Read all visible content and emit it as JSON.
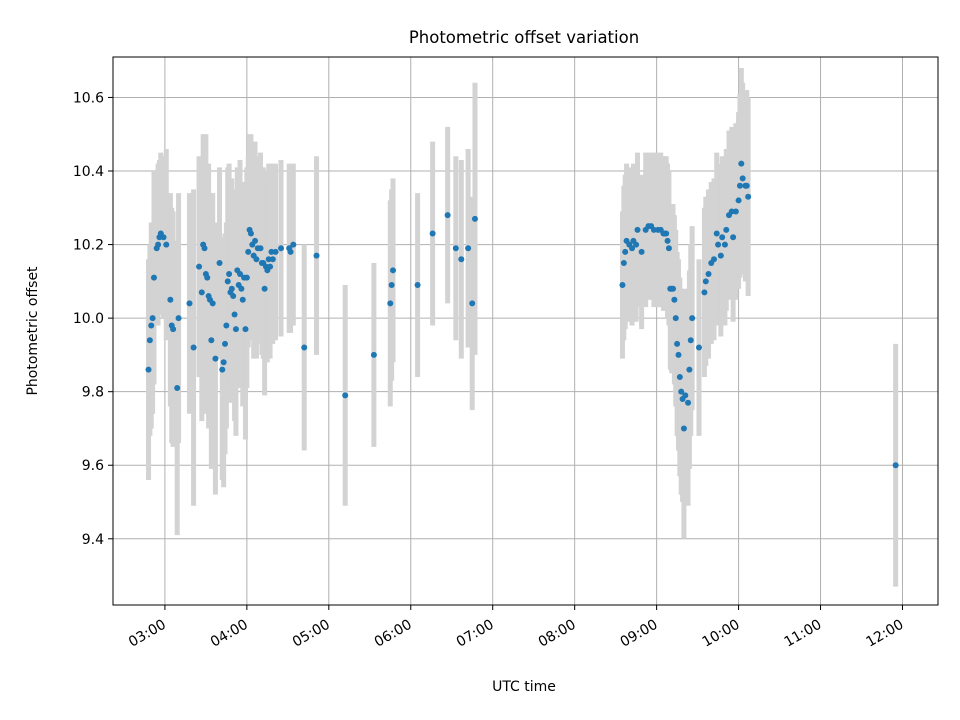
{
  "chart_data": {
    "type": "scatter",
    "title": "Photometric offset variation",
    "xlabel": "UTC time",
    "ylabel": "Photometric offset",
    "x_ticks": [
      "03:00",
      "04:00",
      "05:00",
      "06:00",
      "07:00",
      "08:00",
      "09:00",
      "10:00",
      "11:00",
      "12:00"
    ],
    "y_ticks": [
      "9.4",
      "9.6",
      "9.8",
      "10.0",
      "10.2",
      "10.4",
      "10.6"
    ],
    "xlim": [
      "02:22",
      "12:26"
    ],
    "ylim": [
      9.22,
      10.71
    ],
    "grid": true,
    "colors": {
      "points": "#1f77b4",
      "errorbars": "#d3d3d3",
      "grid": "#b0b0b0",
      "axes": "#000000"
    },
    "series": [
      {
        "points": [
          {
            "t": "02:48",
            "y": 9.86,
            "err": 0.3
          },
          {
            "t": "02:49",
            "y": 9.94,
            "err": 0.26
          },
          {
            "t": "02:50",
            "y": 9.98,
            "err": 0.28
          },
          {
            "t": "02:51",
            "y": 10.0,
            "err": 0.26
          },
          {
            "t": "02:52",
            "y": 10.11,
            "err": 0.29
          },
          {
            "t": "02:54",
            "y": 10.19,
            "err": 0.21
          },
          {
            "t": "02:55",
            "y": 10.2,
            "err": 0.22
          },
          {
            "t": "02:56",
            "y": 10.22,
            "err": 0.21
          },
          {
            "t": "02:57",
            "y": 10.23,
            "err": 0.22
          },
          {
            "t": "02:59",
            "y": 10.22,
            "err": 0.22
          },
          {
            "t": "03:01",
            "y": 10.2,
            "err": 0.26
          },
          {
            "t": "03:04",
            "y": 10.05,
            "err": 0.29
          },
          {
            "t": "03:05",
            "y": 9.98,
            "err": 0.32
          },
          {
            "t": "03:06",
            "y": 9.97,
            "err": 0.32
          },
          {
            "t": "03:09",
            "y": 9.81,
            "err": 0.4
          },
          {
            "t": "03:10",
            "y": 10.0,
            "err": 0.34
          },
          {
            "t": "03:18",
            "y": 10.04,
            "err": 0.3
          },
          {
            "t": "03:21",
            "y": 9.92,
            "err": 0.43
          },
          {
            "t": "03:25",
            "y": 10.14,
            "err": 0.3
          },
          {
            "t": "03:27",
            "y": 10.07,
            "err": 0.35
          },
          {
            "t": "03:28",
            "y": 10.2,
            "err": 0.3
          },
          {
            "t": "03:29",
            "y": 10.19,
            "err": 0.31
          },
          {
            "t": "03:30",
            "y": 10.12,
            "err": 0.38
          },
          {
            "t": "03:31",
            "y": 10.11,
            "err": 0.3
          },
          {
            "t": "03:32",
            "y": 10.06,
            "err": 0.36
          },
          {
            "t": "03:33",
            "y": 10.05,
            "err": 0.29
          },
          {
            "t": "03:34",
            "y": 9.94,
            "err": 0.35
          },
          {
            "t": "03:35",
            "y": 10.04,
            "err": 0.3
          },
          {
            "t": "03:37",
            "y": 9.89,
            "err": 0.37
          },
          {
            "t": "03:40",
            "y": 10.15,
            "err": 0.26
          },
          {
            "t": "03:42",
            "y": 9.86,
            "err": 0.3
          },
          {
            "t": "03:43",
            "y": 9.88,
            "err": 0.34
          },
          {
            "t": "03:44",
            "y": 9.93,
            "err": 0.3
          },
          {
            "t": "03:45",
            "y": 9.98,
            "err": 0.28
          },
          {
            "t": "03:46",
            "y": 10.1,
            "err": 0.31
          },
          {
            "t": "03:47",
            "y": 10.12,
            "err": 0.3
          },
          {
            "t": "03:48",
            "y": 10.07,
            "err": 0.3
          },
          {
            "t": "03:49",
            "y": 10.08,
            "err": 0.3
          },
          {
            "t": "03:50",
            "y": 10.06,
            "err": 0.29
          },
          {
            "t": "03:51",
            "y": 10.01,
            "err": 0.29
          },
          {
            "t": "03:52",
            "y": 9.97,
            "err": 0.29
          },
          {
            "t": "03:53",
            "y": 10.13,
            "err": 0.28
          },
          {
            "t": "03:54",
            "y": 10.09,
            "err": 0.27
          },
          {
            "t": "03:55",
            "y": 10.12,
            "err": 0.31
          },
          {
            "t": "03:56",
            "y": 10.08,
            "err": 0.27
          },
          {
            "t": "03:57",
            "y": 10.05,
            "err": 0.29
          },
          {
            "t": "03:58",
            "y": 10.11,
            "err": 0.26
          },
          {
            "t": "03:59",
            "y": 9.97,
            "err": 0.3
          },
          {
            "t": "04:00",
            "y": 10.11,
            "err": 0.3
          },
          {
            "t": "04:01",
            "y": 10.18,
            "err": 0.26
          },
          {
            "t": "04:02",
            "y": 10.24,
            "err": 0.26
          },
          {
            "t": "04:03",
            "y": 10.23,
            "err": 0.27
          },
          {
            "t": "04:04",
            "y": 10.2,
            "err": 0.26
          },
          {
            "t": "04:05",
            "y": 10.17,
            "err": 0.28
          },
          {
            "t": "04:06",
            "y": 10.21,
            "err": 0.27
          },
          {
            "t": "04:07",
            "y": 10.16,
            "err": 0.27
          },
          {
            "t": "04:08",
            "y": 10.19,
            "err": 0.25
          },
          {
            "t": "04:10",
            "y": 10.19,
            "err": 0.26
          },
          {
            "t": "04:11",
            "y": 10.15,
            "err": 0.25
          },
          {
            "t": "04:12",
            "y": 10.15,
            "err": 0.26
          },
          {
            "t": "04:13",
            "y": 10.08,
            "err": 0.29
          },
          {
            "t": "04:14",
            "y": 10.14,
            "err": 0.26
          },
          {
            "t": "04:15",
            "y": 10.13,
            "err": 0.25
          },
          {
            "t": "04:16",
            "y": 10.16,
            "err": 0.26
          },
          {
            "t": "04:17",
            "y": 10.14,
            "err": 0.25
          },
          {
            "t": "04:18",
            "y": 10.18,
            "err": 0.24
          },
          {
            "t": "04:19",
            "y": 10.16,
            "err": 0.23
          },
          {
            "t": "04:21",
            "y": 10.18,
            "err": 0.24
          },
          {
            "t": "04:25",
            "y": 10.19,
            "err": 0.24
          },
          {
            "t": "04:31",
            "y": 10.19,
            "err": 0.23
          },
          {
            "t": "04:32",
            "y": 10.18,
            "err": 0.22
          },
          {
            "t": "04:34",
            "y": 10.2,
            "err": 0.22
          },
          {
            "t": "04:42",
            "y": 9.92,
            "err": 0.28
          },
          {
            "t": "04:51",
            "y": 10.17,
            "err": 0.27
          },
          {
            "t": "05:12",
            "y": 9.79,
            "err": 0.3
          },
          {
            "t": "05:33",
            "y": 9.9,
            "err": 0.25
          },
          {
            "t": "05:45",
            "y": 10.04,
            "err": 0.28
          },
          {
            "t": "05:46",
            "y": 10.09,
            "err": 0.26
          },
          {
            "t": "05:47",
            "y": 10.13,
            "err": 0.25
          },
          {
            "t": "06:05",
            "y": 10.09,
            "err": 0.25
          },
          {
            "t": "06:16",
            "y": 10.23,
            "err": 0.25
          },
          {
            "t": "06:27",
            "y": 10.28,
            "err": 0.24
          },
          {
            "t": "06:33",
            "y": 10.19,
            "err": 0.25
          },
          {
            "t": "06:37",
            "y": 10.16,
            "err": 0.27
          },
          {
            "t": "06:42",
            "y": 10.19,
            "err": 0.27
          },
          {
            "t": "06:45",
            "y": 10.04,
            "err": 0.29
          },
          {
            "t": "06:47",
            "y": 10.27,
            "err": 0.37
          },
          {
            "t": "08:35",
            "y": 10.09,
            "err": 0.2
          },
          {
            "t": "08:36",
            "y": 10.15,
            "err": 0.21
          },
          {
            "t": "08:37",
            "y": 10.18,
            "err": 0.21
          },
          {
            "t": "08:38",
            "y": 10.21,
            "err": 0.21
          },
          {
            "t": "08:40",
            "y": 10.2,
            "err": 0.21
          },
          {
            "t": "08:42",
            "y": 10.19,
            "err": 0.21
          },
          {
            "t": "08:43",
            "y": 10.21,
            "err": 0.21
          },
          {
            "t": "08:45",
            "y": 10.2,
            "err": 0.21
          },
          {
            "t": "08:46",
            "y": 10.24,
            "err": 0.21
          },
          {
            "t": "08:49",
            "y": 10.18,
            "err": 0.21
          },
          {
            "t": "08:52",
            "y": 10.24,
            "err": 0.21
          },
          {
            "t": "08:54",
            "y": 10.25,
            "err": 0.2
          },
          {
            "t": "08:56",
            "y": 10.25,
            "err": 0.2
          },
          {
            "t": "08:58",
            "y": 10.24,
            "err": 0.21
          },
          {
            "t": "09:01",
            "y": 10.24,
            "err": 0.21
          },
          {
            "t": "09:03",
            "y": 10.24,
            "err": 0.21
          },
          {
            "t": "09:05",
            "y": 10.23,
            "err": 0.21
          },
          {
            "t": "09:06",
            "y": 10.23,
            "err": 0.21
          },
          {
            "t": "09:07",
            "y": 10.23,
            "err": 0.21
          },
          {
            "t": "09:08",
            "y": 10.21,
            "err": 0.21
          },
          {
            "t": "09:09",
            "y": 10.19,
            "err": 0.21
          },
          {
            "t": "09:10",
            "y": 10.08,
            "err": 0.22
          },
          {
            "t": "09:11",
            "y": 10.08,
            "err": 0.23
          },
          {
            "t": "09:12",
            "y": 10.08,
            "err": 0.23
          },
          {
            "t": "09:13",
            "y": 10.05,
            "err": 0.23
          },
          {
            "t": "09:14",
            "y": 10.0,
            "err": 0.24
          },
          {
            "t": "09:15",
            "y": 9.93,
            "err": 0.25
          },
          {
            "t": "09:16",
            "y": 9.9,
            "err": 0.26
          },
          {
            "t": "09:17",
            "y": 9.84,
            "err": 0.27
          },
          {
            "t": "09:18",
            "y": 9.8,
            "err": 0.28
          },
          {
            "t": "09:19",
            "y": 9.78,
            "err": 0.28
          },
          {
            "t": "09:20",
            "y": 9.7,
            "err": 0.3
          },
          {
            "t": "09:21",
            "y": 9.79,
            "err": 0.29
          },
          {
            "t": "09:23",
            "y": 9.77,
            "err": 0.28
          },
          {
            "t": "09:24",
            "y": 9.86,
            "err": 0.27
          },
          {
            "t": "09:25",
            "y": 9.94,
            "err": 0.26
          },
          {
            "t": "09:26",
            "y": 10.0,
            "err": 0.25
          },
          {
            "t": "09:31",
            "y": 9.92,
            "err": 0.24
          },
          {
            "t": "09:35",
            "y": 10.07,
            "err": 0.23
          },
          {
            "t": "09:36",
            "y": 10.1,
            "err": 0.23
          },
          {
            "t": "09:38",
            "y": 10.12,
            "err": 0.23
          },
          {
            "t": "09:40",
            "y": 10.15,
            "err": 0.22
          },
          {
            "t": "09:42",
            "y": 10.16,
            "err": 0.22
          },
          {
            "t": "09:44",
            "y": 10.23,
            "err": 0.22
          },
          {
            "t": "09:45",
            "y": 10.2,
            "err": 0.22
          },
          {
            "t": "09:47",
            "y": 10.17,
            "err": 0.22
          },
          {
            "t": "09:48",
            "y": 10.22,
            "err": 0.22
          },
          {
            "t": "09:50",
            "y": 10.2,
            "err": 0.22
          },
          {
            "t": "09:51",
            "y": 10.24,
            "err": 0.22
          },
          {
            "t": "09:53",
            "y": 10.28,
            "err": 0.23
          },
          {
            "t": "09:55",
            "y": 10.29,
            "err": 0.23
          },
          {
            "t": "09:56",
            "y": 10.22,
            "err": 0.23
          },
          {
            "t": "09:58",
            "y": 10.29,
            "err": 0.24
          },
          {
            "t": "10:00",
            "y": 10.32,
            "err": 0.24
          },
          {
            "t": "10:01",
            "y": 10.36,
            "err": 0.25
          },
          {
            "t": "10:02",
            "y": 10.42,
            "err": 0.26
          },
          {
            "t": "10:03",
            "y": 10.38,
            "err": 0.26
          },
          {
            "t": "10:05",
            "y": 10.36,
            "err": 0.26
          },
          {
            "t": "10:06",
            "y": 10.36,
            "err": 0.26
          },
          {
            "t": "10:07",
            "y": 10.33,
            "err": 0.27
          },
          {
            "t": "11:55",
            "y": 9.6,
            "err": 0.33
          }
        ]
      }
    ]
  }
}
